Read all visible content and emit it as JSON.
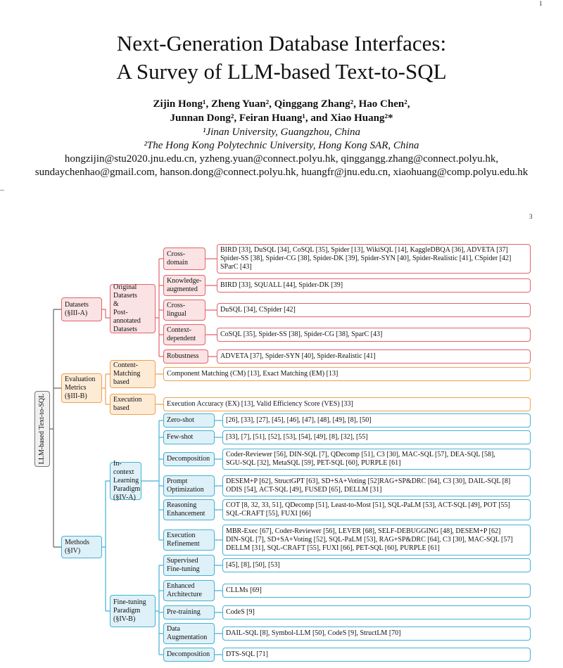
{
  "header": {
    "page_number_top": "1",
    "title_line1": "Next-Generation Database Interfaces:",
    "title_line2": "A Survey of LLM-based Text-to-SQL",
    "authors_line1": "Zijin Hong¹, Zheng Yuan², Qinggang Zhang², Hao Chen²,",
    "authors_line2": "Junnan Dong², Feiran Huang¹, and Xiao Huang²*",
    "affiliation1": "¹Jinan University, Guangzhou, China",
    "affiliation2": "²The Hong Kong Polytechnic University, Hong Kong SAR, China",
    "emails_line1": "hongzijin@stu2020.jnu.edu.cn, yzheng.yuan@connect.polyu.hk, qinggangg.zhang@connect.polyu.hk,",
    "emails_line2": "sundaychenhao@gmail.com, hanson.dong@connect.polyu.hk, huangfr@jnu.edu.cn, xiaohuang@comp.polyu.edu.hk",
    "page_number_second": "3"
  },
  "taxonomy": {
    "root": "LLM-based Text-to-SQL",
    "datasets": {
      "label": "Datasets\n(§III-A)",
      "original": "Original\nDatasets\n&\nPost-annotated\nDatasets",
      "cross_domain": {
        "label": "Cross-\ndomain",
        "items": "BIRD [33], DuSQL [34], CoSQL [35], Spider [13], WikiSQL [14], KaggleDBQA [36], ADVETA [37]\nSpider-SS [38], Spider-CG [38], Spider-DK [39], Spider-SYN [40], Spider-Realistic [41], CSpider [42]\nSParC [43]"
      },
      "knowledge": {
        "label": "Knowledge-\naugmented",
        "items": "BIRD [33], SQUALL [44], Spider-DK [39]"
      },
      "cross_lingual": {
        "label": "Cross-\nlingual",
        "items": "DuSQL [34], CSpider [42]"
      },
      "context": {
        "label": "Context-\ndependent",
        "items": "CoSQL [35], Spider-SS [38], Spider-CG [38], SparC [43]"
      },
      "robustness": {
        "label": "Robustness",
        "items": "ADVETA [37], Spider-SYN [40], Spider-Realistic [41]"
      }
    },
    "evaluation": {
      "label": "Evaluation\nMetrics\n(§III-B)",
      "content": {
        "label": "Content-\nMatching\nbased",
        "items": "Component Matching (CM) [13], Exact Matching (EM) [13]"
      },
      "execution": {
        "label": "Execution\nbased",
        "items": "Execution Accuracy (EX) [13], Valid Efficiency Score (VES) [33]"
      }
    },
    "methods": {
      "label": "Methods\n(§IV)",
      "icl": {
        "label": "In-context\nLearning\nParadigm\n(§IV-A)",
        "zero_shot": {
          "label": "Zero-shot",
          "items": "[26], [33], [27], [45], [46], [47], [48], [49], [8], [50]"
        },
        "few_shot": {
          "label": "Few-shot",
          "items": "[33], [7], [51], [52], [53], [54], [49], [8], [32], [55]"
        },
        "decomposition": {
          "label": "Decomposition",
          "items": "Coder-Reviewer [56], DIN-SQL [7], QDecomp [51], C3 [30], MAC-SQL [57], DEA-SQL [58],\nSGU-SQL [32], MetaSQL [59], PET-SQL [60], PURPLE [61]"
        },
        "prompt": {
          "label": "Prompt\nOptimization",
          "items": "DESEM+P [62], StructGPT [63], SD+SA+Voting [52]RAG+SP&DRC [64], C3 [30], DAIL-SQL [8]\nODIS [54], ACT-SQL [49], FUSED [65], DELLM [31]"
        },
        "reasoning": {
          "label": "Reasoning\nEnhancement",
          "items": "COT [8, 32, 33, 51], QDecomp [51], Least-to-Most [51], SQL-PaLM [53], ACT-SQL [49], POT [55]\nSQL-CRAFT [55], FUXI [66]"
        },
        "execution": {
          "label": "Execution\nRefinement",
          "items": "MBR-Exec [67], Coder-Reviewer [56], LEVER [68], SELF-DEBUGGING [48], DESEM+P [62]\nDIN-SQL [7], SD+SA+Voting [52], SQL-PaLM [53], RAG+SP&DRC [64], C3 [30], MAC-SQL [57]\nDELLM [31], SQL-CRAFT [55], FUXI [66], PET-SQL [60], PURPLE [61]"
        }
      },
      "ft": {
        "label": "Fine-tuning\nParadigm\n(§IV-B)",
        "supervised": {
          "label": "Supervised\nFine-tuning",
          "items": "[45], [8], [50], [53]"
        },
        "enhanced": {
          "label": "Enhanced\nArchitecture",
          "items": "CLLMs [69]"
        },
        "pretraining": {
          "label": "Pre-training",
          "items": "CodeS [9]"
        },
        "augmentation": {
          "label": "Data\nAugmentation",
          "items": "DAIL-SQL [8], Symbol-LLM [50], CodeS [9], StructLM [70]"
        },
        "decomposition": {
          "label": "Decomposition",
          "items": "DTS-SQL [71]"
        }
      }
    },
    "colors": {
      "datasets": "#e0646b",
      "evaluation": "#f0a14f",
      "methods": "#44b1d4"
    }
  }
}
